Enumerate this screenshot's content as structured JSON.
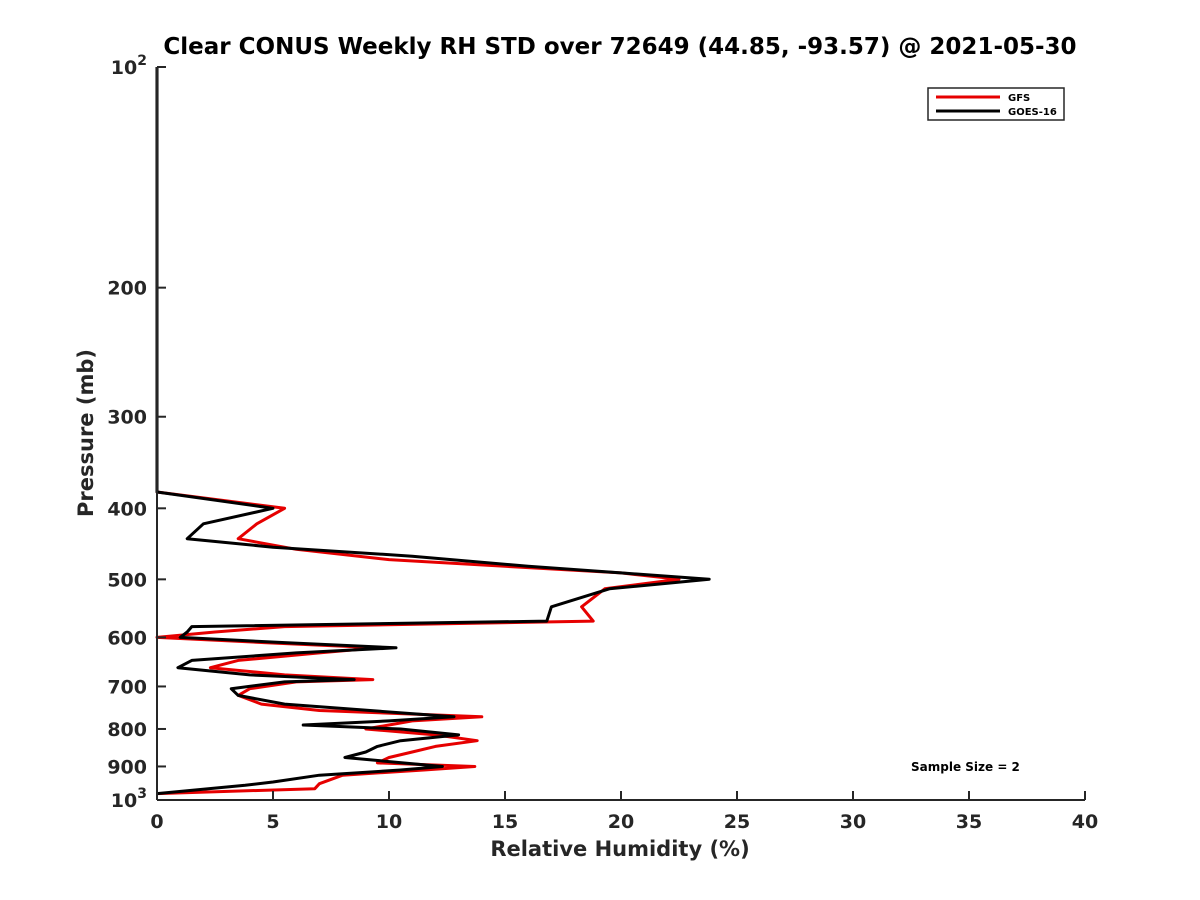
{
  "chart_data": {
    "type": "line",
    "title": "Clear CONUS Weekly RH STD over 72649 (44.85, -93.57) @ 2021-05-30",
    "xlabel": "Relative Humidity (%)",
    "ylabel": "Pressure (mb)",
    "xlim": [
      0,
      40
    ],
    "ylim": [
      100,
      1000
    ],
    "yscale": "log",
    "y_reversed": true,
    "grid": false,
    "legend_placement": "top-right",
    "x_ticks": [
      0,
      5,
      10,
      15,
      20,
      25,
      30,
      35,
      40
    ],
    "x_tick_labels": [
      "0",
      "5",
      "10",
      "15",
      "20",
      "25",
      "30",
      "35",
      "40"
    ],
    "y_ticks": [
      100,
      200,
      300,
      400,
      500,
      600,
      700,
      800,
      900,
      1000
    ],
    "y_tick_labels": [
      {
        "base": "10",
        "exp": "2"
      },
      {
        "base": "200",
        "exp": ""
      },
      {
        "base": "300",
        "exp": ""
      },
      {
        "base": "400",
        "exp": ""
      },
      {
        "base": "500",
        "exp": ""
      },
      {
        "base": "600",
        "exp": ""
      },
      {
        "base": "700",
        "exp": ""
      },
      {
        "base": "800",
        "exp": ""
      },
      {
        "base": "900",
        "exp": ""
      },
      {
        "base": "10",
        "exp": "3"
      }
    ],
    "annotation": "Sample Size = 2",
    "series": [
      {
        "name": "GFS",
        "color": "#e60000",
        "points": [
          [
            0,
            100
          ],
          [
            0,
            380
          ],
          [
            5.5,
            400
          ],
          [
            4.3,
            420
          ],
          [
            3.5,
            440
          ],
          [
            6,
            455
          ],
          [
            10,
            470
          ],
          [
            15,
            480
          ],
          [
            20,
            490
          ],
          [
            22.5,
            500
          ],
          [
            19.3,
            515
          ],
          [
            18.3,
            545
          ],
          [
            18.8,
            570
          ],
          [
            5.5,
            580
          ],
          [
            2.5,
            590
          ],
          [
            0,
            600
          ],
          [
            4.6,
            610
          ],
          [
            9.5,
            620
          ],
          [
            7,
            630
          ],
          [
            3.5,
            645
          ],
          [
            2.3,
            660
          ],
          [
            5.5,
            675
          ],
          [
            9.3,
            685
          ],
          [
            6,
            690
          ],
          [
            4,
            705
          ],
          [
            3.5,
            720
          ],
          [
            4.5,
            740
          ],
          [
            7,
            755
          ],
          [
            14,
            770
          ],
          [
            11,
            780
          ],
          [
            10,
            790
          ],
          [
            9,
            800
          ],
          [
            12,
            815
          ],
          [
            13.8,
            830
          ],
          [
            12,
            845
          ],
          [
            11,
            860
          ],
          [
            10,
            875
          ],
          [
            9.5,
            890
          ],
          [
            13.7,
            900
          ],
          [
            11.5,
            910
          ],
          [
            8,
            925
          ],
          [
            7,
            950
          ],
          [
            6.8,
            965
          ],
          [
            0,
            980
          ]
        ]
      },
      {
        "name": "GOES-16",
        "color": "#000000",
        "points": [
          [
            0,
            100
          ],
          [
            0,
            380
          ],
          [
            5,
            400
          ],
          [
            2,
            420
          ],
          [
            1.3,
            440
          ],
          [
            5,
            452
          ],
          [
            11,
            465
          ],
          [
            16,
            480
          ],
          [
            20,
            490
          ],
          [
            23.8,
            500
          ],
          [
            19.5,
            515
          ],
          [
            17,
            545
          ],
          [
            16.8,
            570
          ],
          [
            1.5,
            580
          ],
          [
            1.3,
            590
          ],
          [
            1,
            600
          ],
          [
            5.5,
            610
          ],
          [
            10.3,
            620
          ],
          [
            6,
            630
          ],
          [
            1.5,
            645
          ],
          [
            0.9,
            660
          ],
          [
            4,
            675
          ],
          [
            8.5,
            685
          ],
          [
            5.5,
            690
          ],
          [
            3.2,
            705
          ],
          [
            3.5,
            720
          ],
          [
            5.5,
            740
          ],
          [
            12.8,
            770
          ],
          [
            10,
            780
          ],
          [
            6.3,
            790
          ],
          [
            10.5,
            800
          ],
          [
            13,
            815
          ],
          [
            10.5,
            830
          ],
          [
            9.5,
            845
          ],
          [
            9,
            860
          ],
          [
            8.1,
            875
          ],
          [
            12.3,
            900
          ],
          [
            10.5,
            910
          ],
          [
            7,
            925
          ],
          [
            5,
            945
          ],
          [
            3.8,
            955
          ],
          [
            0,
            980
          ]
        ]
      }
    ]
  }
}
